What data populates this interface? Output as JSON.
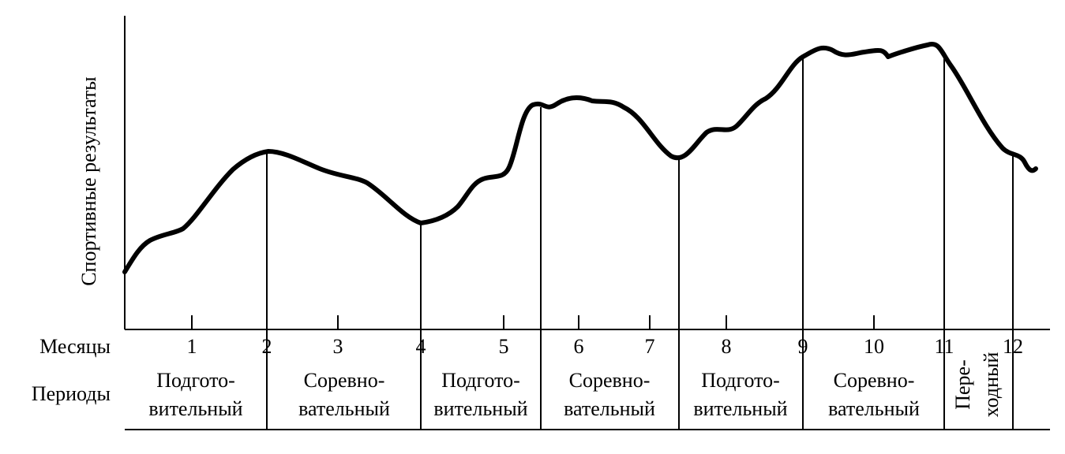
{
  "axis_label": "Спортивные результаты",
  "row_labels": {
    "months": "Месяцы",
    "periods": "Периоды"
  },
  "months": [
    "1",
    "2",
    "3",
    "4",
    "5",
    "6",
    "7",
    "8",
    "9",
    "10",
    "11",
    "12"
  ],
  "periods": [
    {
      "lines": [
        "Подгото-",
        "вительный"
      ]
    },
    {
      "lines": [
        "Соревно-",
        "вательный"
      ]
    },
    {
      "lines": [
        "Подгото-",
        "вительный"
      ]
    },
    {
      "lines": [
        "Соревно-",
        "вательный"
      ]
    },
    {
      "lines": [
        "Подгото-",
        "вительный"
      ]
    },
    {
      "lines": [
        "Соревно-",
        "вательный"
      ]
    },
    {
      "lines": [
        "Пере-",
        "ходный"
      ]
    }
  ]
}
